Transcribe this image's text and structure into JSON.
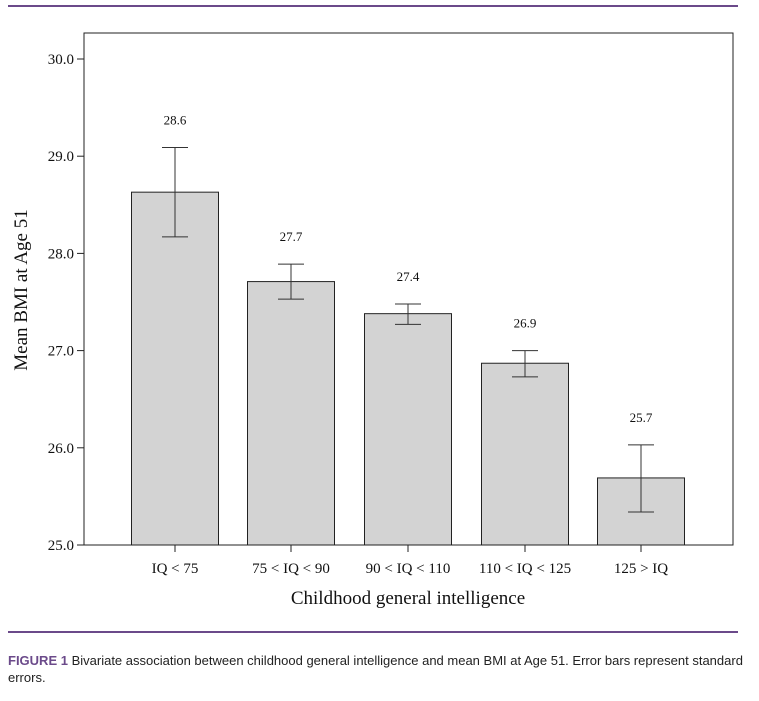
{
  "caption": {
    "label": "FIGURE 1",
    "text": " Bivariate association between childhood general intelligence and mean BMI at Age 51. Error bars represent standard errors."
  },
  "colors": {
    "rule": "#6b4a8a",
    "bar_fill": "#d3d3d3",
    "bar_stroke": "#222222"
  },
  "chart_data": {
    "type": "bar",
    "categories": [
      "IQ < 75",
      "75 < IQ < 90",
      "90 < IQ < 110",
      "110 < IQ < 125",
      "125 > IQ"
    ],
    "values": [
      28.63,
      27.71,
      27.38,
      26.87,
      25.69
    ],
    "data_labels": [
      "28.6",
      "27.7",
      "27.4",
      "26.9",
      "25.7"
    ],
    "error_upper": [
      29.09,
      27.89,
      27.48,
      27.0,
      26.03
    ],
    "error_lower": [
      28.17,
      27.53,
      27.27,
      26.73,
      25.34
    ],
    "xlabel": "Childhood general intelligence",
    "ylabel": "Mean BMI at Age 51",
    "ylim": [
      25.0,
      30.0
    ],
    "yticks": [
      "25.0",
      "26.0",
      "27.0",
      "28.0",
      "29.0",
      "30.0"
    ],
    "grid": false
  }
}
